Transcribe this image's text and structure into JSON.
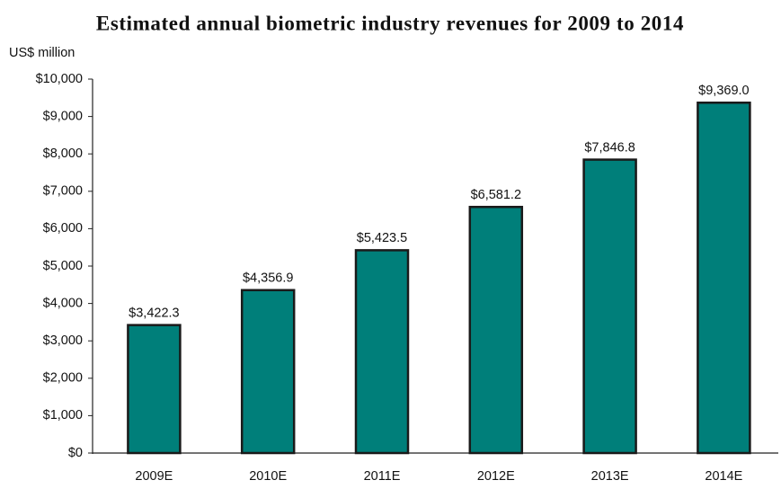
{
  "chart_data": {
    "type": "bar",
    "title": "Estimated annual biometric industry revenues for 2009 to 2014",
    "y_label": "US$ million",
    "categories": [
      "2009E",
      "2010E",
      "2011E",
      "2012E",
      "2013E",
      "2014E"
    ],
    "values": [
      3422.3,
      4356.9,
      5423.5,
      6581.2,
      7846.8,
      9369.0
    ],
    "value_labels": [
      "$3,422.3",
      "$4,356.9",
      "$5,423.5",
      "$6,581.2",
      "$7,846.8",
      "$9,369.0"
    ],
    "color": "#007f7a",
    "ylim": [
      0,
      10000
    ],
    "yticks": [
      {
        "value": 0,
        "label": "$0"
      },
      {
        "value": 1000,
        "label": "$1,000"
      },
      {
        "value": 2000,
        "label": "$2,000"
      },
      {
        "value": 3000,
        "label": "$3,000"
      },
      {
        "value": 4000,
        "label": "$4,000"
      },
      {
        "value": 5000,
        "label": "$5,000"
      },
      {
        "value": 6000,
        "label": "$6,000"
      },
      {
        "value": 7000,
        "label": "$7,000"
      },
      {
        "value": 8000,
        "label": "$8,000"
      },
      {
        "value": 9000,
        "label": "$9,000"
      },
      {
        "value": 10000,
        "label": "$10,000"
      }
    ],
    "grid": false
  }
}
